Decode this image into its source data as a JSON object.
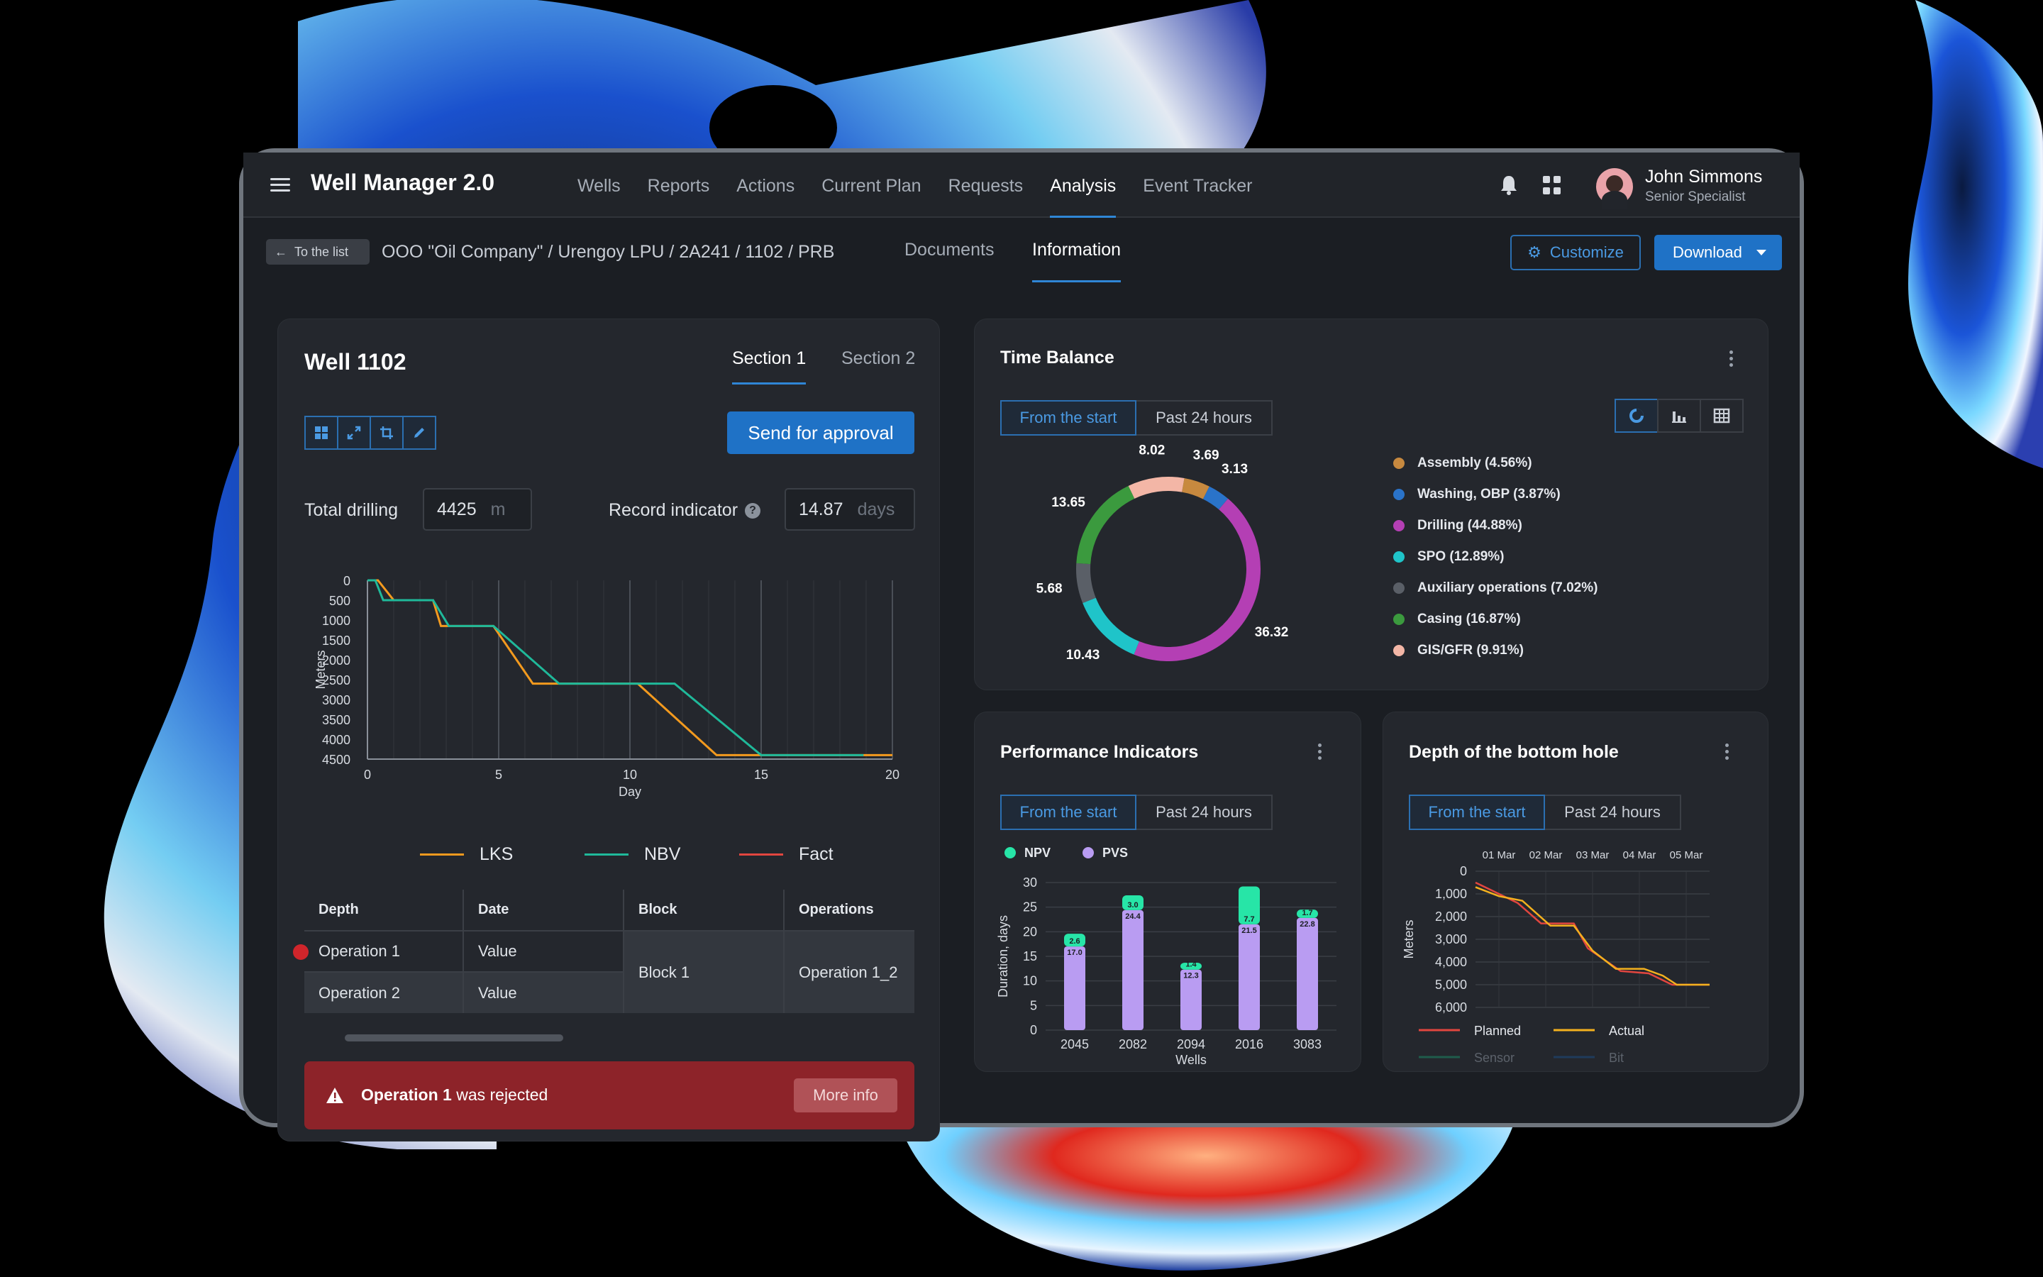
{
  "app": {
    "title": "Well Manager 2.0"
  },
  "nav": {
    "items": [
      "Wells",
      "Reports",
      "Actions",
      "Current Plan",
      "Requests",
      "Analysis",
      "Event Tracker"
    ],
    "active": "Analysis"
  },
  "user": {
    "name": "John Simmons",
    "role": "Senior Specialist"
  },
  "subbar": {
    "back": "To the list",
    "breadcrumb": "OOO \"Oil Company\" / Urengoy LPU / 2A241 / 1102 / PRB",
    "tabs": [
      "Documents",
      "Information"
    ],
    "active_tab": "Information",
    "customize": "Customize",
    "download": "Download"
  },
  "well": {
    "title": "Well 1102",
    "section_tabs": [
      "Section 1",
      "Section 2"
    ],
    "active_section": "Section 1",
    "approve": "Send for approval",
    "total_drilling_label": "Total drilling",
    "total_drilling_value": "4425",
    "total_drilling_unit": "m",
    "record_label": "Record indicator",
    "record_value": "14.87",
    "record_unit": "days",
    "help": "?"
  },
  "depth_chart": {
    "type": "line",
    "xlabel": "Day",
    "ylabel": "Meters",
    "x_ticks": [
      0,
      5,
      10,
      15,
      20
    ],
    "y_ticks": [
      0,
      500,
      1000,
      1500,
      2000,
      2500,
      3000,
      3500,
      4000,
      4500
    ],
    "xlim": [
      0,
      20
    ],
    "ylim": [
      0,
      4500
    ],
    "y_inverted": true,
    "series": [
      {
        "name": "LKS",
        "color": "#f39a1e",
        "points": [
          [
            0,
            0
          ],
          [
            0.4,
            0
          ],
          [
            1,
            500
          ],
          [
            2.5,
            500
          ],
          [
            2.8,
            1150
          ],
          [
            4.8,
            1150
          ],
          [
            6.3,
            2600
          ],
          [
            10.3,
            2600
          ],
          [
            13.3,
            4400
          ],
          [
            20,
            4400
          ]
        ]
      },
      {
        "name": "NBV",
        "color": "#1fb99a",
        "points": [
          [
            0,
            0
          ],
          [
            0.3,
            0
          ],
          [
            0.6,
            500
          ],
          [
            2.5,
            500
          ],
          [
            3.1,
            1150
          ],
          [
            4.8,
            1150
          ],
          [
            7.3,
            2600
          ],
          [
            11.7,
            2600
          ],
          [
            15,
            4400
          ],
          [
            18.9,
            4400
          ]
        ]
      },
      {
        "name": "Fact",
        "color": "#e2463f",
        "points": []
      }
    ]
  },
  "ops_table": {
    "headers": [
      "Depth",
      "Date",
      "Block",
      "Operations"
    ],
    "rows": [
      {
        "depth": "Operation 1",
        "date": "Value"
      },
      {
        "depth": "Operation 2",
        "date": "Value"
      }
    ],
    "block": "Block 1",
    "operation": "Operation 1_2"
  },
  "alert": {
    "bold": "Operation 1",
    "rest": " was rejected",
    "button": "More info"
  },
  "time_balance": {
    "title": "Time Balance",
    "filters": [
      "From the start",
      "Past 24 hours"
    ],
    "active_filter": "From the start",
    "chart_data": {
      "type": "pie",
      "slices": [
        {
          "name": "Assembly (4.56%)",
          "value": 3.69,
          "color": "#c7893f"
        },
        {
          "name": "Washing, OBP (3.87%)",
          "value": 3.13,
          "color": "#2a73c9"
        },
        {
          "name": "Drilling (44.88%)",
          "value": 36.32,
          "color": "#b43fb4"
        },
        {
          "name": "SPO (12.89%)",
          "value": 10.43,
          "color": "#1fc4c9"
        },
        {
          "name": "Auxiliary operations (7.02%)",
          "value": 5.68,
          "color": "#5a5f67"
        },
        {
          "name": "Casing (16.87%)",
          "value": 13.65,
          "color": "#3b9a3e"
        },
        {
          "name": "GIS/GFR (9.91%)",
          "value": 8.02,
          "color": "#f3b6a6"
        }
      ]
    }
  },
  "performance": {
    "title": "Performance Indicators",
    "filters": [
      "From the start",
      "Past 24 hours"
    ],
    "active_filter": "From the start",
    "chart_data": {
      "type": "bar",
      "xlabel": "Wells",
      "ylabel": "Duration, days",
      "ylim": [
        0,
        30
      ],
      "y_ticks": [
        0,
        5,
        10,
        15,
        20,
        25,
        30
      ],
      "categories": [
        "2045",
        "2082",
        "2094",
        "2016",
        "3083"
      ],
      "series": [
        {
          "name": "PVS",
          "color": "#b99cf2",
          "values": [
            17.0,
            24.4,
            12.3,
            21.5,
            22.8
          ]
        },
        {
          "name": "NPV",
          "color": "#27e5a7",
          "values": [
            2.6,
            3.0,
            1.4,
            7.7,
            1.7
          ]
        }
      ]
    }
  },
  "bottom_hole": {
    "title": "Depth of the bottom hole",
    "filters": [
      "From the start",
      "Past 24 hours"
    ],
    "active_filter": "From the start",
    "chart_data": {
      "type": "line",
      "ylabel": "Meters",
      "y_inverted": true,
      "ylim": [
        0,
        6000
      ],
      "y_ticks": [
        "0",
        "1,000",
        "2,000",
        "3,000",
        "4,000",
        "5,000",
        "6,000"
      ],
      "x_ticks": [
        "01 Mar",
        "02 Mar",
        "03 Mar",
        "04 Mar",
        "05 Mar"
      ],
      "series": [
        {
          "name": "Planned",
          "color": "#e2463f",
          "points": [
            [
              0,
              500
            ],
            [
              0.4,
              900
            ],
            [
              0.9,
              1400
            ],
            [
              1.4,
              2300
            ],
            [
              2.1,
              2300
            ],
            [
              2.4,
              3400
            ],
            [
              3.1,
              4400
            ],
            [
              3.7,
              4500
            ],
            [
              4.2,
              5000
            ],
            [
              5,
              5000
            ]
          ]
        },
        {
          "name": "Actual",
          "color": "#f4b11e",
          "points": [
            [
              0,
              700
            ],
            [
              0.5,
              1100
            ],
            [
              1,
              1300
            ],
            [
              1.6,
              2400
            ],
            [
              2.1,
              2400
            ],
            [
              2.5,
              3500
            ],
            [
              3.0,
              4300
            ],
            [
              3.6,
              4300
            ],
            [
              4.0,
              4600
            ],
            [
              4.3,
              5000
            ],
            [
              5,
              5000
            ]
          ]
        },
        {
          "name": "Sensor",
          "color": "#1f5c4c",
          "points": []
        },
        {
          "name": "Bit",
          "color": "#1f3b5c",
          "points": []
        }
      ]
    }
  }
}
